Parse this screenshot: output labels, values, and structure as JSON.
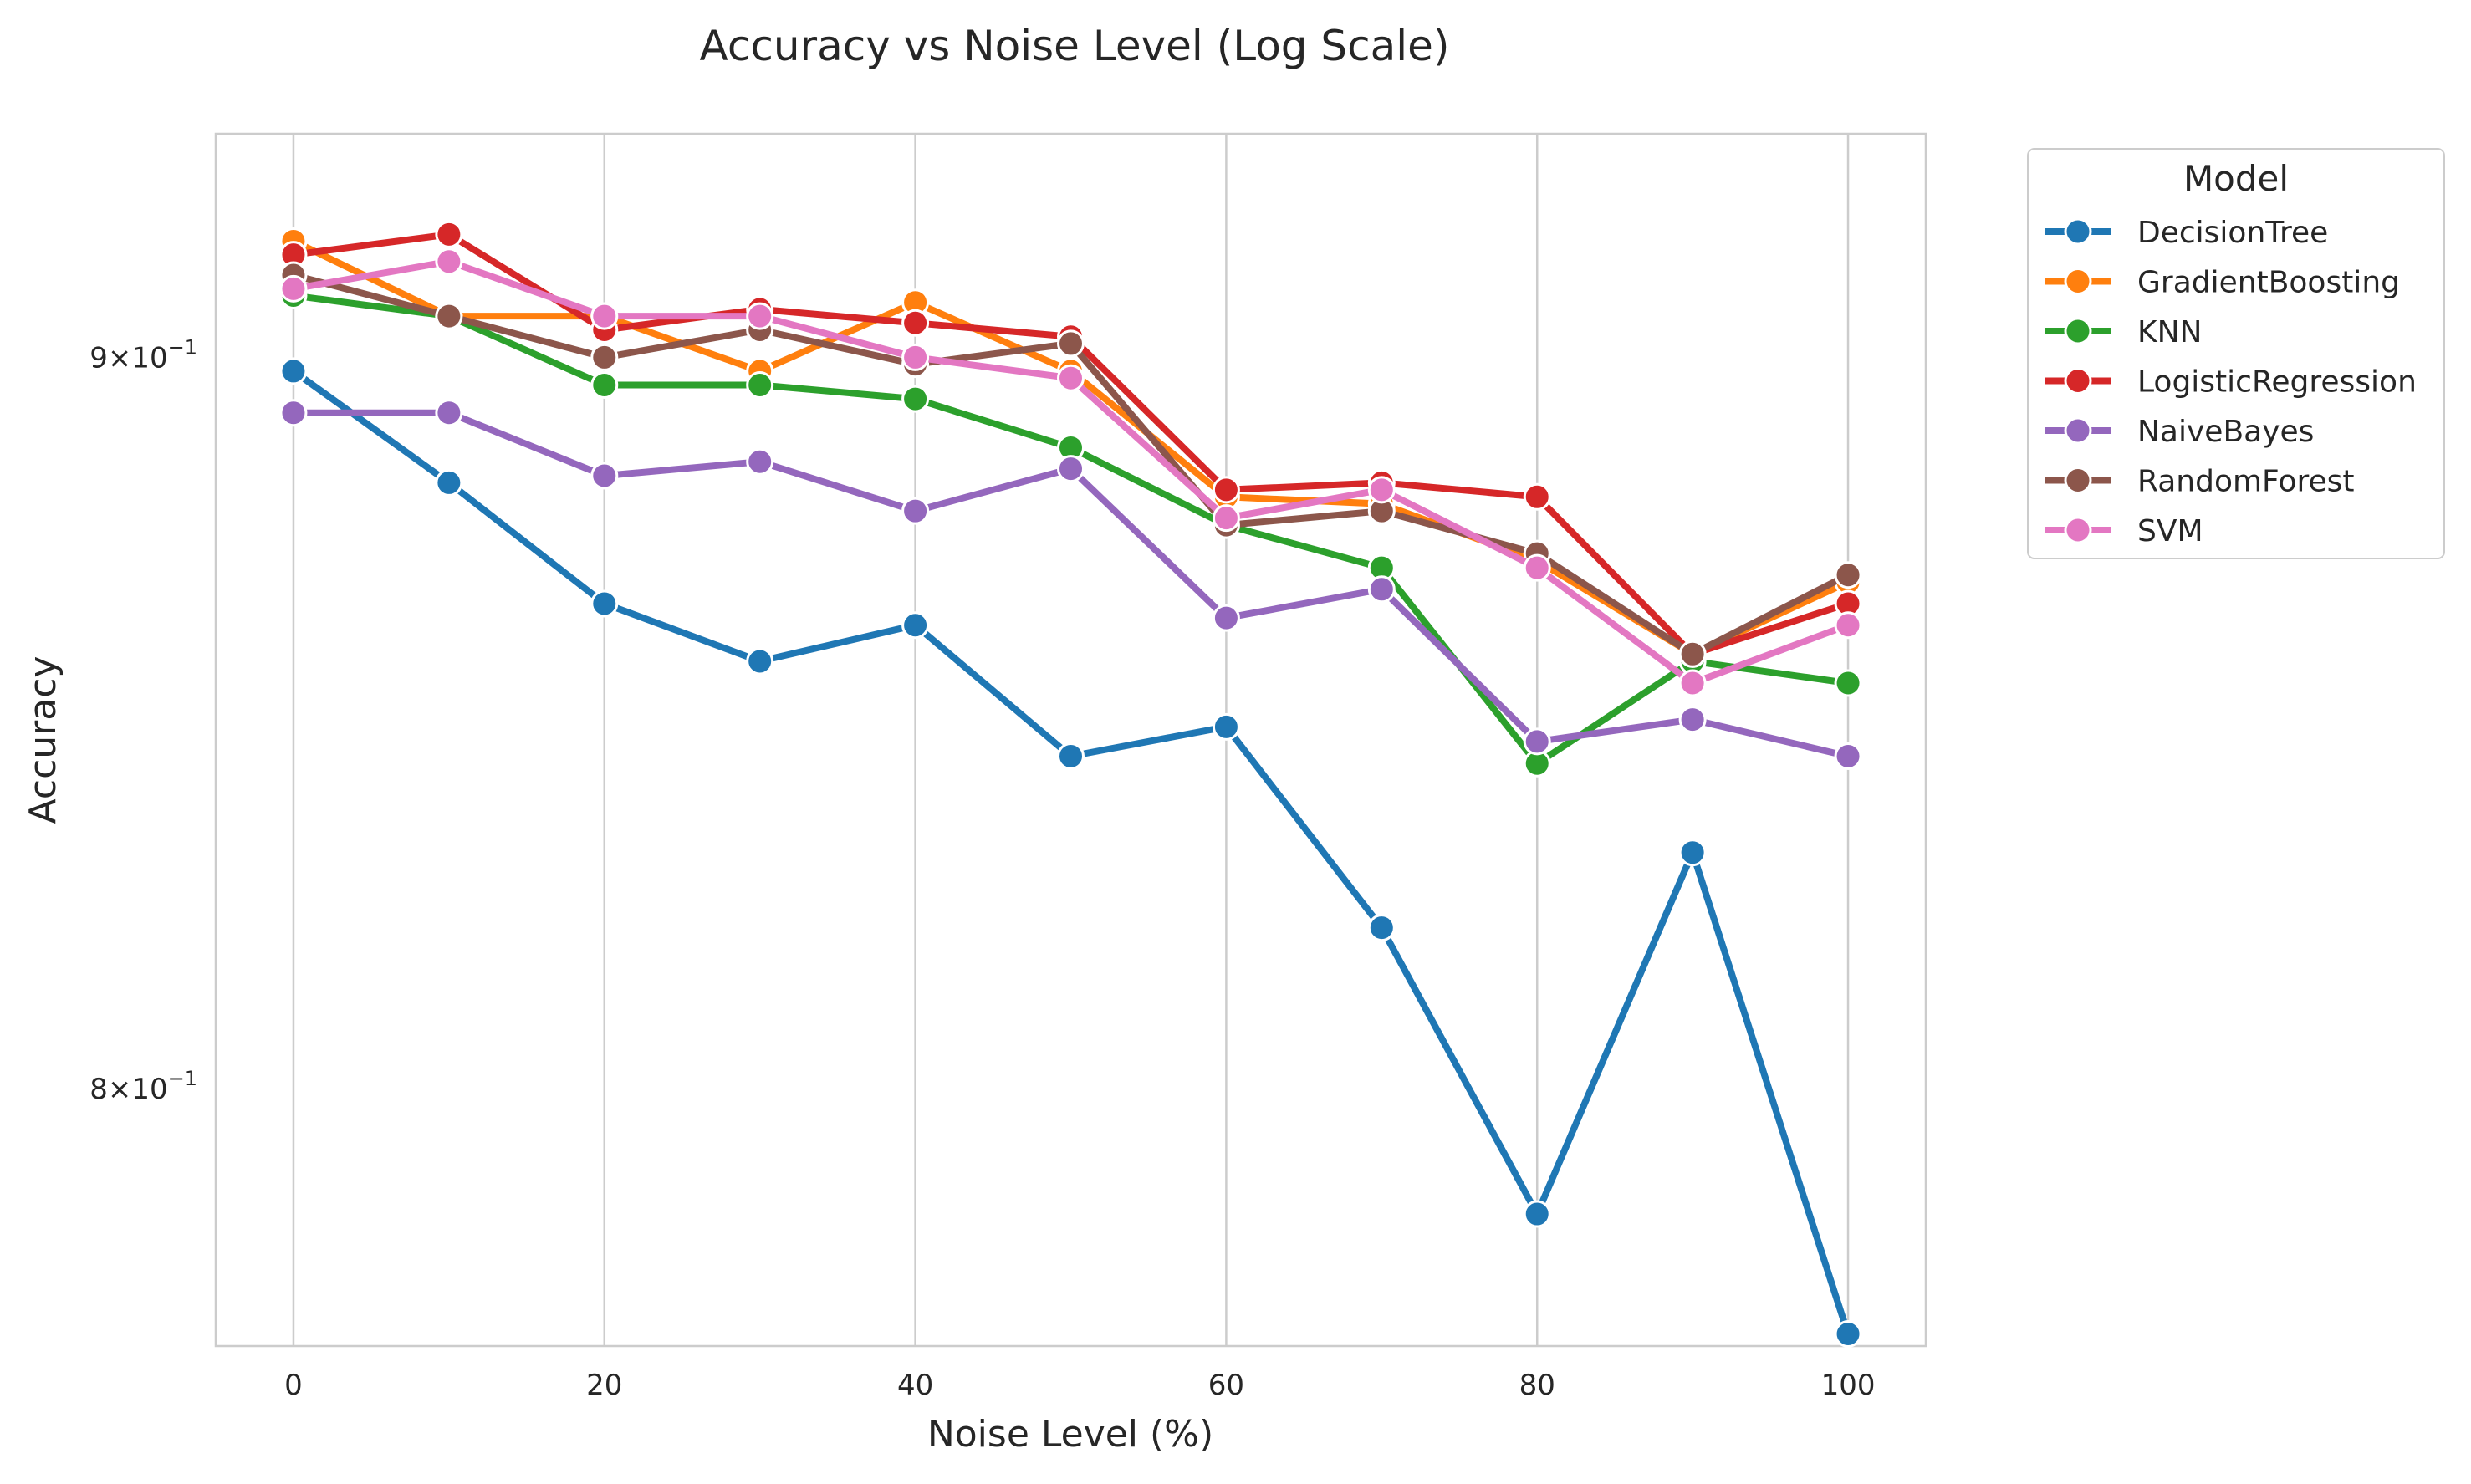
{
  "chart_data": {
    "type": "line",
    "title": "Accuracy vs Noise Level (Log Scale)",
    "xlabel": "Noise Level (%)",
    "ylabel": "Accuracy",
    "yscale": "log",
    "x": [
      0,
      10,
      20,
      30,
      40,
      50,
      60,
      70,
      80,
      90,
      100
    ],
    "xlim": [
      -5,
      105
    ],
    "ylim": [
      0.7675,
      0.933
    ],
    "xticks": [
      0,
      20,
      40,
      60,
      80,
      100
    ],
    "xtick_labels": [
      "0",
      "20",
      "40",
      "60",
      "80",
      "100"
    ],
    "yticks": [
      0.8,
      0.9
    ],
    "ytick_labels": [
      {
        "base": "8",
        "exp": "−1"
      },
      {
        "base": "9",
        "exp": "−1"
      }
    ],
    "grid": "vertical",
    "legend": {
      "title": "Model",
      "placement": "outside-upper-right"
    },
    "series": [
      {
        "name": "DecisionTree",
        "color": "#1f77b4",
        "values": [
          0.898,
          0.882,
          0.865,
          0.857,
          0.862,
          0.844,
          0.848,
          0.821,
          0.784,
          0.831,
          0.769
        ]
      },
      {
        "name": "GradientBoosting",
        "color": "#ff7f0e",
        "values": [
          0.917,
          0.906,
          0.906,
          0.898,
          0.908,
          0.898,
          0.88,
          0.879,
          0.871,
          0.858,
          0.868
        ]
      },
      {
        "name": "KNN",
        "color": "#2ca02c",
        "values": [
          0.909,
          0.906,
          0.896,
          0.896,
          0.894,
          0.887,
          0.876,
          0.87,
          0.843,
          0.857,
          0.854
        ]
      },
      {
        "name": "LogisticRegression",
        "color": "#d62728",
        "values": [
          0.915,
          0.918,
          0.904,
          0.907,
          0.905,
          0.903,
          0.881,
          0.882,
          0.88,
          0.858,
          0.865
        ]
      },
      {
        "name": "NaiveBayes",
        "color": "#9467bd",
        "values": [
          0.892,
          0.892,
          0.883,
          0.885,
          0.878,
          0.884,
          0.863,
          0.867,
          0.846,
          0.849,
          0.844
        ]
      },
      {
        "name": "RandomForest",
        "color": "#8c564b",
        "values": [
          0.912,
          0.906,
          0.9,
          0.904,
          0.899,
          0.902,
          0.876,
          0.878,
          0.872,
          0.858,
          0.869
        ]
      },
      {
        "name": "SVM",
        "color": "#e377c2",
        "values": [
          0.91,
          0.914,
          0.906,
          0.906,
          0.9,
          0.897,
          0.877,
          0.881,
          0.87,
          0.854,
          0.862
        ]
      }
    ]
  }
}
